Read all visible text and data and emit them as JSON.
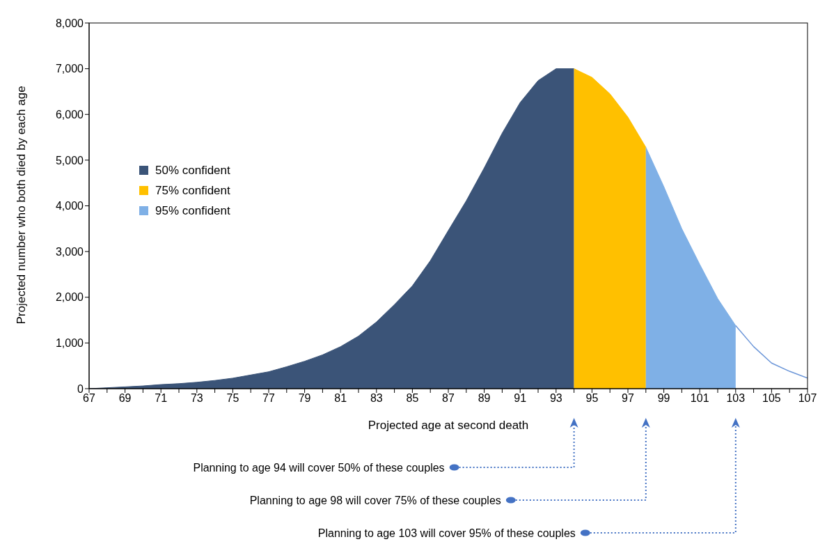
{
  "chart_data": {
    "type": "area",
    "xlabel": "Projected age at second death",
    "ylabel": "Projected number who both died by each age",
    "xlim": [
      67,
      107
    ],
    "ylim": [
      0,
      8000
    ],
    "xticks": [
      67,
      {
        "value": 68,
        "label": null
      },
      69,
      {
        "value": 70,
        "label": null
      },
      71,
      {
        "value": 72,
        "label": null
      },
      73,
      {
        "value": 74,
        "label": null
      },
      75,
      {
        "value": 76,
        "label": null
      },
      77,
      {
        "value": 78,
        "label": null
      },
      79,
      {
        "value": 80,
        "label": null
      },
      81,
      {
        "value": 82,
        "label": null
      },
      83,
      {
        "value": 84,
        "label": null
      },
      85,
      {
        "value": 86,
        "label": null
      },
      87,
      {
        "value": 88,
        "label": null
      },
      89,
      {
        "value": 90,
        "label": null
      },
      91,
      {
        "value": 92,
        "label": null
      },
      93,
      {
        "value": 94,
        "label": null
      },
      95,
      {
        "value": 96,
        "label": null
      },
      97,
      {
        "value": 98,
        "label": null
      },
      99,
      {
        "value": 100,
        "label": null
      },
      101,
      {
        "value": 102,
        "label": null
      },
      103,
      {
        "value": 104,
        "label": null
      },
      105,
      {
        "value": 106,
        "label": null
      },
      107
    ],
    "yticks": [
      0,
      {
        "value": 1000,
        "label": "1,000"
      },
      {
        "value": 2000,
        "label": "2,000"
      },
      {
        "value": 3000,
        "label": "3,000"
      },
      {
        "value": 4000,
        "label": "4,000"
      },
      {
        "value": 5000,
        "label": "5,000"
      },
      {
        "value": 6000,
        "label": "6,000"
      },
      {
        "value": 7000,
        "label": "7,000"
      },
      {
        "value": 8000,
        "label": "8,000"
      }
    ],
    "grid": false,
    "legend": "left",
    "series": [
      {
        "name": "50% confident",
        "color": "#3b5478",
        "x": [
          67,
          68,
          69,
          70,
          71,
          72,
          73,
          74,
          75,
          76,
          77,
          78,
          79,
          80,
          81,
          82,
          83,
          84,
          85,
          86,
          87,
          88,
          89,
          90,
          91,
          92,
          93,
          94
        ],
        "values": [
          0,
          20,
          40,
          60,
          90,
          110,
          140,
          180,
          230,
          300,
          370,
          480,
          600,
          740,
          920,
          1150,
          1460,
          1840,
          2250,
          2800,
          3460,
          4110,
          4830,
          5590,
          6260,
          6740,
          7000,
          7000
        ]
      },
      {
        "name": "75% confident",
        "color": "#ffc000",
        "x": [
          94,
          95,
          96,
          97,
          98
        ],
        "values": [
          7000,
          6810,
          6450,
          5940,
          5280
        ]
      },
      {
        "name": "95% confident",
        "color": "#7fb0e6",
        "x": [
          98,
          99,
          100,
          101,
          102,
          103
        ],
        "values": [
          5280,
          4420,
          3500,
          2720,
          1970,
          1380
        ]
      },
      {
        "type": "line",
        "color": "#6a95d8",
        "x": [
          103,
          104,
          105,
          106,
          107
        ],
        "values": [
          1380,
          920,
          560,
          380,
          230
        ]
      }
    ],
    "annotations": [
      "Planning to age 94 will cover 50% of these couples",
      "Planning to age 98 will cover 75% of these couples",
      "Planning to age 103 will cover 95% of these couples"
    ]
  }
}
